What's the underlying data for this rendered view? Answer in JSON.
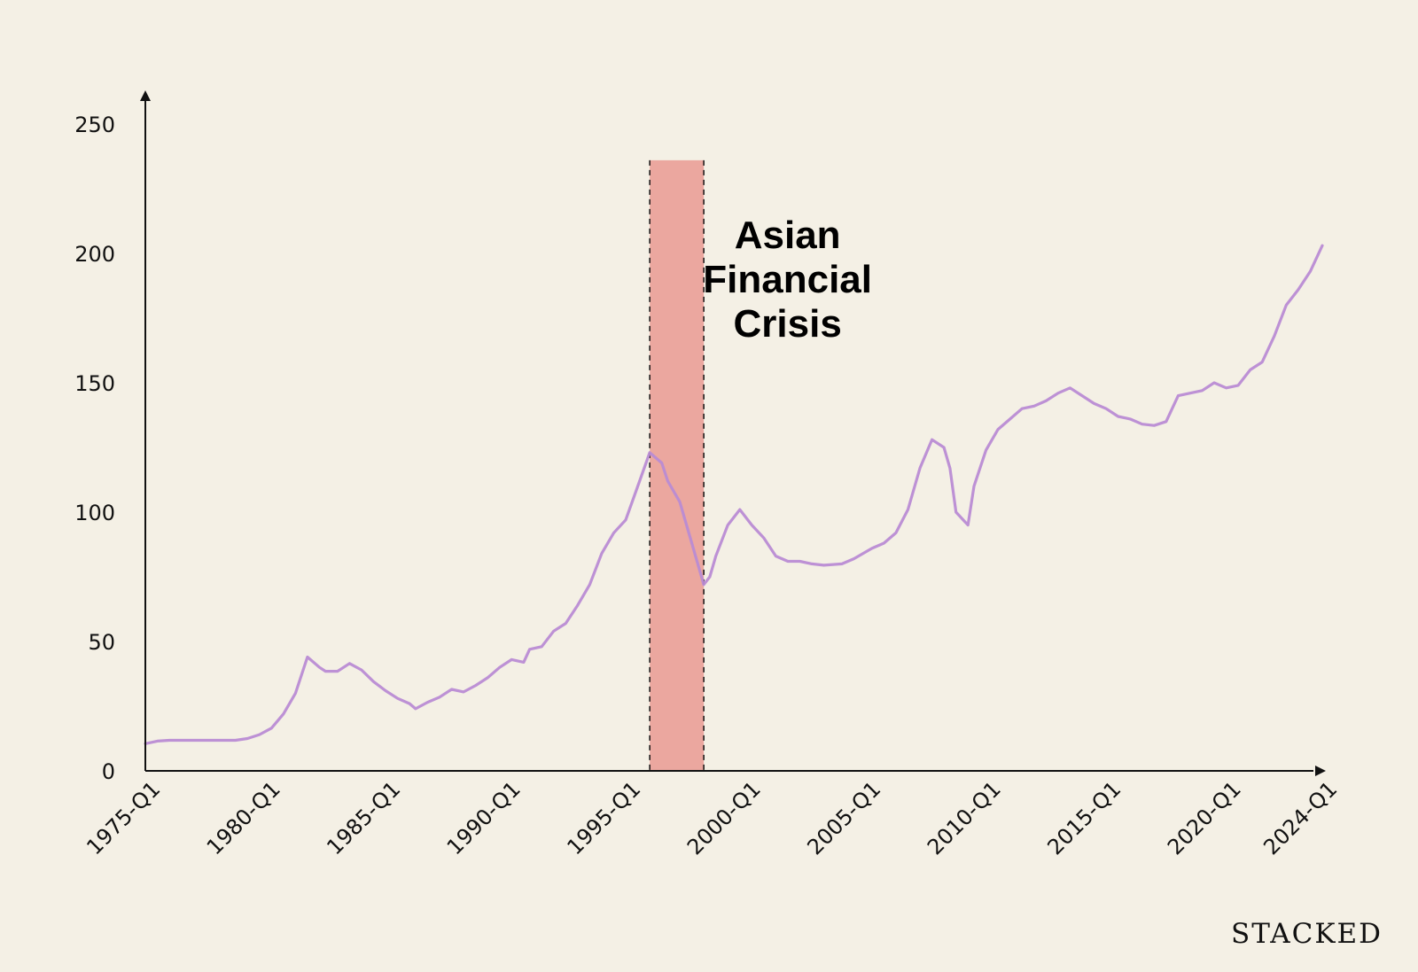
{
  "chart_data": {
    "type": "line",
    "title": "",
    "xlabel": "",
    "ylabel": "",
    "ylim": [
      0,
      250
    ],
    "y_ticks": [
      0,
      50,
      100,
      150,
      200,
      250
    ],
    "x_ticks": [
      "1975-Q1",
      "1980-Q1",
      "1985-Q1",
      "1990-Q1",
      "1995-Q1",
      "2000-Q1",
      "2005-Q1",
      "2010-Q1",
      "2015-Q1",
      "2020-Q1",
      "2024-Q1"
    ],
    "x_range": [
      "1975-Q1",
      "2024-Q1"
    ],
    "grid": false,
    "legend": "none",
    "series": [
      {
        "color": "#b98bd4",
        "points": [
          [
            "1975-Q1",
            10.5
          ],
          [
            "1975-Q3",
            11.5
          ],
          [
            "1976-Q1",
            11.8
          ],
          [
            "1977-Q1",
            11.8
          ],
          [
            "1978-Q1",
            11.8
          ],
          [
            "1978-Q4",
            11.8
          ],
          [
            "1979-Q2",
            12.5
          ],
          [
            "1979-Q4",
            14.0
          ],
          [
            "1980-Q2",
            16.5
          ],
          [
            "1980-Q4",
            22.0
          ],
          [
            "1981-Q2",
            30.0
          ],
          [
            "1981-Q4",
            44.0
          ],
          [
            "1982-Q2",
            40.0
          ],
          [
            "1982-Q3",
            38.5
          ],
          [
            "1983-Q1",
            38.5
          ],
          [
            "1983-Q3",
            41.5
          ],
          [
            "1984-Q1",
            39.0
          ],
          [
            "1984-Q3",
            34.5
          ],
          [
            "1985-Q1",
            31.0
          ],
          [
            "1985-Q3",
            28.0
          ],
          [
            "1986-Q1",
            26.0
          ],
          [
            "1986-Q2",
            24.0
          ],
          [
            "1986-Q4",
            26.5
          ],
          [
            "1987-Q2",
            28.5
          ],
          [
            "1987-Q4",
            31.5
          ],
          [
            "1988-Q2",
            30.5
          ],
          [
            "1988-Q4",
            33.0
          ],
          [
            "1989-Q2",
            36.0
          ],
          [
            "1989-Q4",
            40.0
          ],
          [
            "1990-Q2",
            43.0
          ],
          [
            "1990-Q4",
            42.0
          ],
          [
            "1991-Q1",
            47.0
          ],
          [
            "1991-Q3",
            48.0
          ],
          [
            "1992-Q1",
            54.0
          ],
          [
            "1992-Q3",
            57.0
          ],
          [
            "1993-Q1",
            64.0
          ],
          [
            "1993-Q3",
            72.0
          ],
          [
            "1994-Q1",
            84.0
          ],
          [
            "1994-Q3",
            92.0
          ],
          [
            "1995-Q1",
            97.0
          ],
          [
            "1995-Q3",
            110.0
          ],
          [
            "1996-Q1",
            123.0
          ],
          [
            "1996-Q3",
            119.0
          ],
          [
            "1996-Q4",
            112.0
          ],
          [
            "1997-Q2",
            104.0
          ],
          [
            "1997-Q4",
            88.0
          ],
          [
            "1998-Q2",
            72.0
          ],
          [
            "1998-Q3",
            75.0
          ],
          [
            "1998-Q4",
            83.0
          ],
          [
            "1999-Q2",
            95.0
          ],
          [
            "1999-Q4",
            101.0
          ],
          [
            "2000-Q2",
            95.0
          ],
          [
            "2000-Q4",
            90.0
          ],
          [
            "2001-Q2",
            83.0
          ],
          [
            "2001-Q4",
            81.0
          ],
          [
            "2002-Q2",
            81.0
          ],
          [
            "2002-Q4",
            80.0
          ],
          [
            "2003-Q2",
            79.5
          ],
          [
            "2004-Q1",
            80.0
          ],
          [
            "2004-Q3",
            82.0
          ],
          [
            "2005-Q2",
            86.0
          ],
          [
            "2005-Q4",
            88.0
          ],
          [
            "2006-Q2",
            92.0
          ],
          [
            "2006-Q4",
            101.0
          ],
          [
            "2007-Q2",
            117.0
          ],
          [
            "2007-Q4",
            128.0
          ],
          [
            "2008-Q2",
            125.0
          ],
          [
            "2008-Q3",
            117.0
          ],
          [
            "2008-Q4",
            100.0
          ],
          [
            "2009-Q2",
            95.0
          ],
          [
            "2009-Q3",
            110.0
          ],
          [
            "2010-Q1",
            124.0
          ],
          [
            "2010-Q3",
            132.0
          ],
          [
            "2011-Q1",
            136.0
          ],
          [
            "2011-Q3",
            140.0
          ],
          [
            "2012-Q1",
            141.0
          ],
          [
            "2012-Q3",
            143.0
          ],
          [
            "2013-Q1",
            146.0
          ],
          [
            "2013-Q3",
            148.0
          ],
          [
            "2014-Q1",
            145.0
          ],
          [
            "2014-Q3",
            142.0
          ],
          [
            "2015-Q1",
            140.0
          ],
          [
            "2015-Q3",
            137.0
          ],
          [
            "2016-Q1",
            136.0
          ],
          [
            "2016-Q3",
            134.0
          ],
          [
            "2017-Q1",
            133.5
          ],
          [
            "2017-Q3",
            135.0
          ],
          [
            "2018-Q1",
            145.0
          ],
          [
            "2018-Q3",
            146.0
          ],
          [
            "2019-Q1",
            147.0
          ],
          [
            "2019-Q3",
            150.0
          ],
          [
            "2020-Q1",
            148.0
          ],
          [
            "2020-Q3",
            149.0
          ],
          [
            "2021-Q1",
            155.0
          ],
          [
            "2021-Q3",
            158.0
          ],
          [
            "2022-Q1",
            168.0
          ],
          [
            "2022-Q3",
            180.0
          ],
          [
            "2023-Q1",
            186.0
          ],
          [
            "2023-Q3",
            193.0
          ],
          [
            "2024-Q1",
            203.0
          ]
        ]
      }
    ],
    "shaded_region": {
      "start": "1996-Q1",
      "end": "1998-Q2",
      "color": "#eba79f"
    },
    "annotation": [
      "Asian",
      "Financial",
      "Crisis"
    ],
    "annotation_anchor": "2001-Q1"
  },
  "brand": "STACKED"
}
